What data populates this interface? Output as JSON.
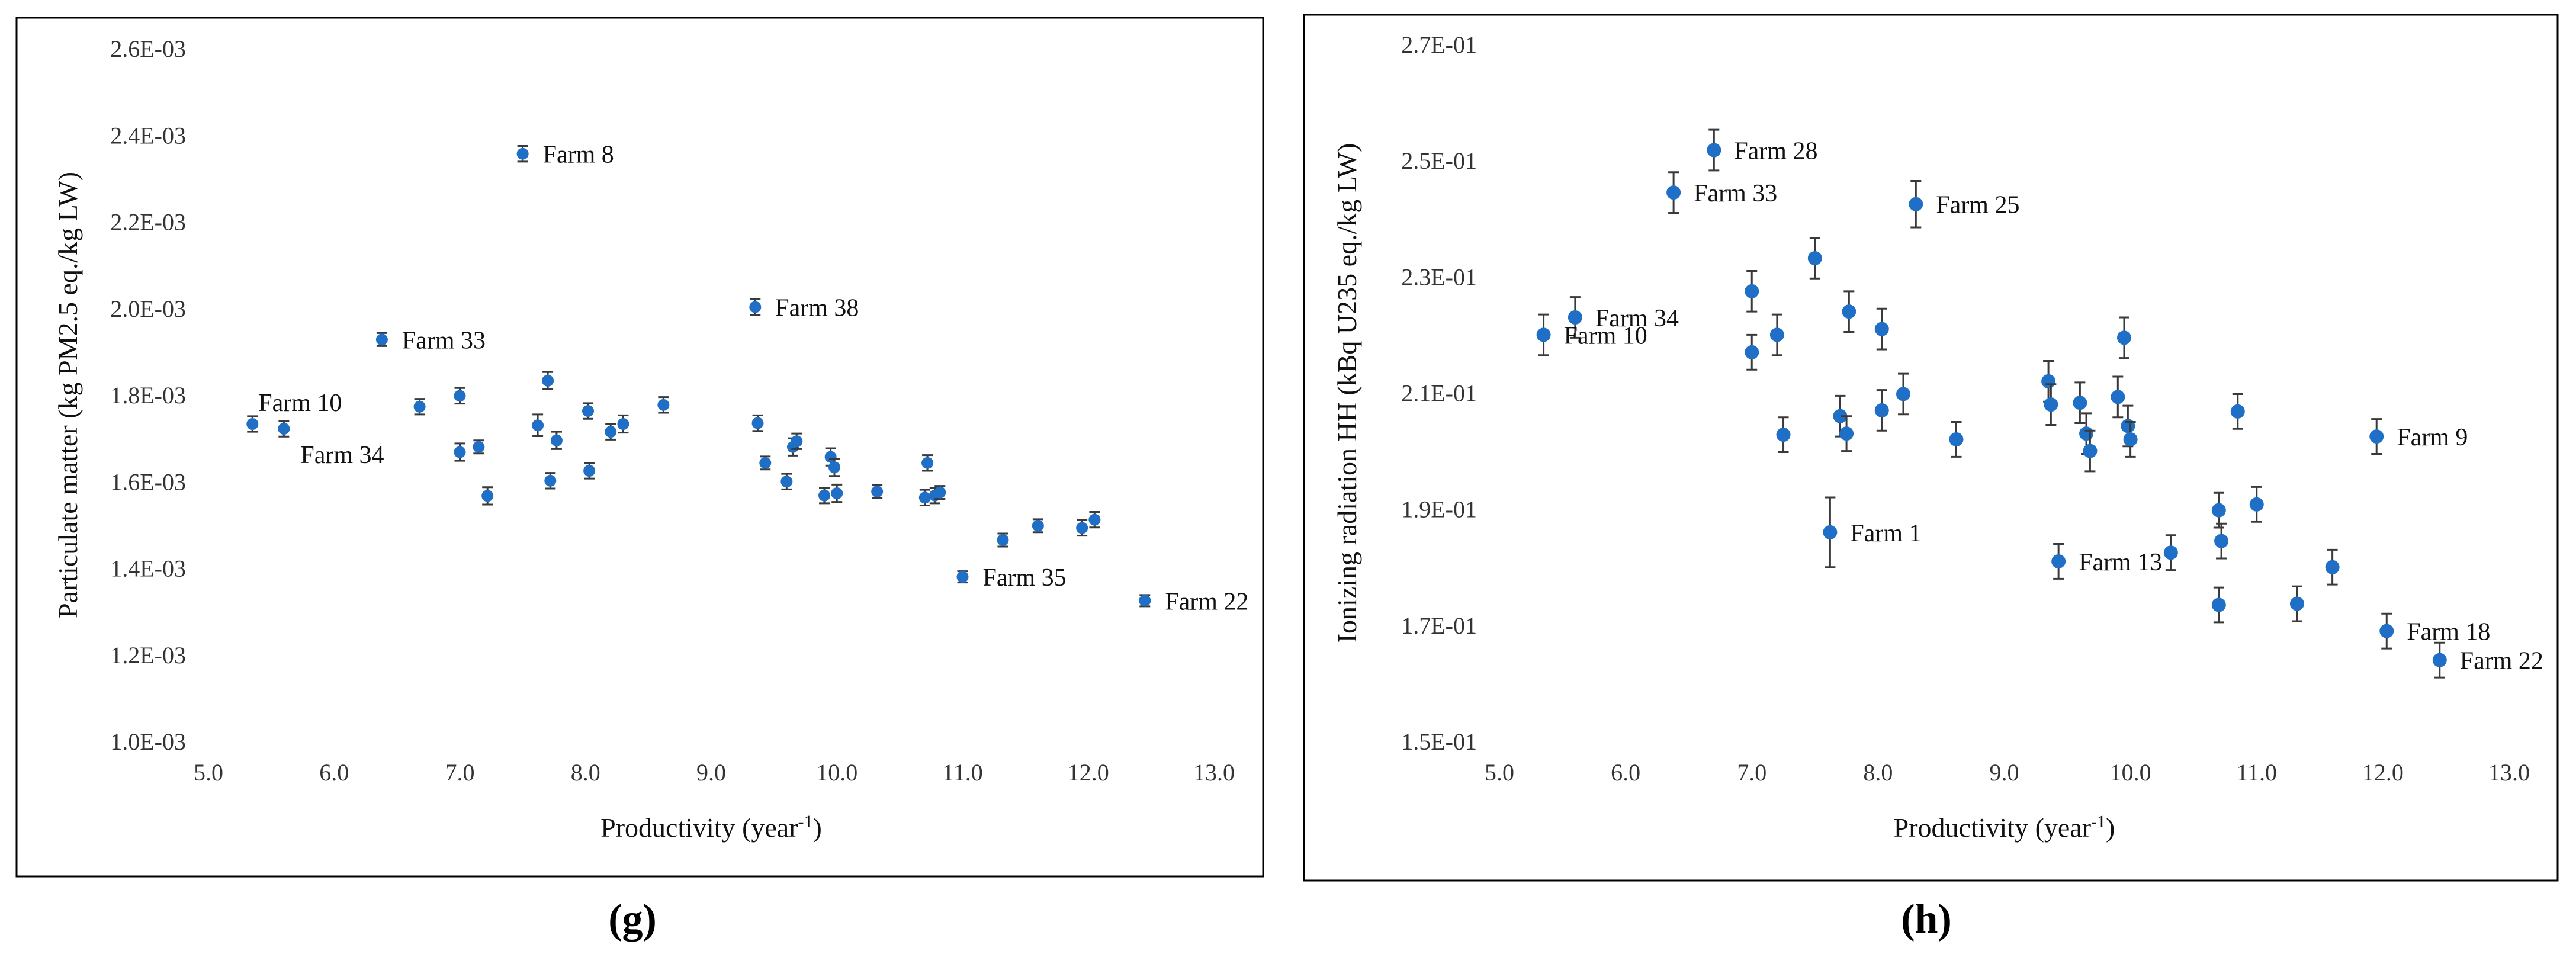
{
  "chart_data": [
    {
      "panel": "(g)",
      "type": "scatter",
      "xlabel": "Productivity (year",
      "xlabel_sup": "-1",
      "xlabel_end": ")",
      "ylabel": "Particulate matter (kg PM2.5 eq./kg LW)",
      "xlim": [
        5.0,
        13.0
      ],
      "ylim": [
        0.001,
        0.0026
      ],
      "x_ticks": [
        5,
        6,
        7,
        8,
        9,
        10,
        11,
        12,
        13
      ],
      "x_tick_labels": [
        "5.0",
        "6.0",
        "7.0",
        "8.0",
        "9.0",
        "10.0",
        "11.0",
        "12.0",
        "13.0"
      ],
      "y_ticks": [
        0.001,
        0.0012,
        0.0014,
        0.0016,
        0.0018,
        0.002,
        0.0022,
        0.0024,
        0.0026
      ],
      "y_tick_labels": [
        "1.0E-03",
        "1.2E-03",
        "1.4E-03",
        "1.6E-03",
        "1.8E-03",
        "2.0E-03",
        "2.2E-03",
        "2.4E-03",
        "2.6E-03"
      ],
      "points": [
        {
          "x": 5.35,
          "y": 0.001733,
          "e": 1.8e-05
        },
        {
          "x": 5.6,
          "y": 0.001722,
          "e": 1.8e-05
        },
        {
          "x": 6.38,
          "y": 0.001928,
          "e": 1.5e-05
        },
        {
          "x": 6.68,
          "y": 0.001773,
          "e": 1.8e-05
        },
        {
          "x": 7.0,
          "y": 0.001798,
          "e": 1.8e-05
        },
        {
          "x": 7.0,
          "y": 0.001668,
          "e": 2e-05
        },
        {
          "x": 7.15,
          "y": 0.00168,
          "e": 1.5e-05
        },
        {
          "x": 7.22,
          "y": 0.001567,
          "e": 2e-05
        },
        {
          "x": 7.5,
          "y": 0.002357,
          "e": 1.8e-05
        },
        {
          "x": 7.62,
          "y": 0.00173,
          "e": 2.5e-05
        },
        {
          "x": 7.7,
          "y": 0.001833,
          "e": 2e-05
        },
        {
          "x": 7.72,
          "y": 0.001602,
          "e": 1.8e-05
        },
        {
          "x": 7.77,
          "y": 0.001695,
          "e": 2e-05
        },
        {
          "x": 8.02,
          "y": 0.001763,
          "e": 1.8e-05
        },
        {
          "x": 8.03,
          "y": 0.001625,
          "e": 1.8e-05
        },
        {
          "x": 8.2,
          "y": 0.001715,
          "e": 1.8e-05
        },
        {
          "x": 8.3,
          "y": 0.001733,
          "e": 2e-05
        },
        {
          "x": 8.62,
          "y": 0.001777,
          "e": 1.8e-05
        },
        {
          "x": 9.35,
          "y": 0.002003,
          "e": 1.8e-05
        },
        {
          "x": 9.37,
          "y": 0.001735,
          "e": 1.8e-05
        },
        {
          "x": 9.43,
          "y": 0.001643,
          "e": 1.5e-05
        },
        {
          "x": 9.6,
          "y": 0.0016,
          "e": 1.8e-05
        },
        {
          "x": 9.65,
          "y": 0.00168,
          "e": 2e-05
        },
        {
          "x": 9.68,
          "y": 0.001693,
          "e": 1.8e-05
        },
        {
          "x": 9.9,
          "y": 0.001568,
          "e": 1.8e-05
        },
        {
          "x": 9.95,
          "y": 0.001657,
          "e": 2e-05
        },
        {
          "x": 9.98,
          "y": 0.001633,
          "e": 2e-05
        },
        {
          "x": 10.0,
          "y": 0.001573,
          "e": 2e-05
        },
        {
          "x": 10.32,
          "y": 0.001577,
          "e": 1.5e-05
        },
        {
          "x": 10.7,
          "y": 0.001563,
          "e": 1.8e-05
        },
        {
          "x": 10.72,
          "y": 0.001643,
          "e": 1.8e-05
        },
        {
          "x": 10.78,
          "y": 0.001568,
          "e": 1.8e-05
        },
        {
          "x": 10.82,
          "y": 0.001575,
          "e": 1.5e-05
        },
        {
          "x": 11.0,
          "y": 0.00138,
          "e": 1.3e-05
        },
        {
          "x": 11.32,
          "y": 0.001465,
          "e": 1.5e-05
        },
        {
          "x": 11.6,
          "y": 0.001498,
          "e": 1.5e-05
        },
        {
          "x": 11.95,
          "y": 0.001493,
          "e": 1.8e-05
        },
        {
          "x": 12.05,
          "y": 0.001512,
          "e": 1.8e-05
        },
        {
          "x": 12.45,
          "y": 0.001325,
          "e": 1.3e-05
        }
      ],
      "annotations": [
        {
          "text": "Farm 8",
          "x": 7.5,
          "y": 0.002357,
          "side": "right"
        },
        {
          "text": "Farm 38",
          "x": 9.35,
          "y": 0.002003,
          "side": "right"
        },
        {
          "text": "Farm 33",
          "x": 6.38,
          "y": 0.001928,
          "side": "right"
        },
        {
          "text": "Farm 10",
          "x": 5.35,
          "y": 0.001733,
          "side": "above"
        },
        {
          "text": "Farm 34",
          "x": 5.6,
          "y": 0.001722,
          "side": "below"
        },
        {
          "text": "Farm 35",
          "x": 11.0,
          "y": 0.00138,
          "side": "right"
        },
        {
          "text": "Farm 22",
          "x": 12.45,
          "y": 0.001325,
          "side": "right"
        }
      ]
    },
    {
      "panel": "(h)",
      "type": "scatter",
      "xlabel": "Productivity (year",
      "xlabel_sup": "-1",
      "xlabel_end": ")",
      "ylabel": "Ionizing radiation HH (kBq U235 eq./kg LW)",
      "xlim": [
        5.0,
        13.0
      ],
      "ylim": [
        0.15,
        0.27
      ],
      "x_ticks": [
        5,
        6,
        7,
        8,
        9,
        10,
        11,
        12,
        13
      ],
      "x_tick_labels": [
        "5.0",
        "6.0",
        "7.0",
        "8.0",
        "9.0",
        "10.0",
        "11.0",
        "12.0",
        "13.0"
      ],
      "y_ticks": [
        0.15,
        0.17,
        0.19,
        0.21,
        0.23,
        0.25,
        0.27
      ],
      "y_tick_labels": [
        "1.5E-01",
        "1.7E-01",
        "1.9E-01",
        "2.1E-01",
        "2.3E-01",
        "2.5E-01",
        "2.7E-01"
      ],
      "points": [
        {
          "x": 5.35,
          "y": 0.22,
          "e": 0.0035
        },
        {
          "x": 5.6,
          "y": 0.223,
          "e": 0.0035
        },
        {
          "x": 6.38,
          "y": 0.2445,
          "e": 0.0035
        },
        {
          "x": 6.7,
          "y": 0.2518,
          "e": 0.0035
        },
        {
          "x": 7.0,
          "y": 0.2275,
          "e": 0.0035
        },
        {
          "x": 7.0,
          "y": 0.217,
          "e": 0.003
        },
        {
          "x": 7.2,
          "y": 0.22,
          "e": 0.0035
        },
        {
          "x": 7.25,
          "y": 0.2028,
          "e": 0.003
        },
        {
          "x": 7.5,
          "y": 0.2332,
          "e": 0.0035
        },
        {
          "x": 7.62,
          "y": 0.186,
          "e": 0.006
        },
        {
          "x": 7.7,
          "y": 0.206,
          "e": 0.0035
        },
        {
          "x": 7.75,
          "y": 0.203,
          "e": 0.003
        },
        {
          "x": 7.77,
          "y": 0.224,
          "e": 0.0035
        },
        {
          "x": 8.03,
          "y": 0.221,
          "e": 0.0035
        },
        {
          "x": 8.03,
          "y": 0.207,
          "e": 0.0035
        },
        {
          "x": 8.2,
          "y": 0.2098,
          "e": 0.0035
        },
        {
          "x": 8.3,
          "y": 0.2425,
          "e": 0.004
        },
        {
          "x": 8.62,
          "y": 0.202,
          "e": 0.003
        },
        {
          "x": 9.35,
          "y": 0.212,
          "e": 0.0035
        },
        {
          "x": 9.37,
          "y": 0.208,
          "e": 0.0035
        },
        {
          "x": 9.43,
          "y": 0.181,
          "e": 0.003
        },
        {
          "x": 9.6,
          "y": 0.2083,
          "e": 0.0035
        },
        {
          "x": 9.65,
          "y": 0.203,
          "e": 0.0035
        },
        {
          "x": 9.68,
          "y": 0.2,
          "e": 0.0035
        },
        {
          "x": 9.9,
          "y": 0.2093,
          "e": 0.0035
        },
        {
          "x": 9.95,
          "y": 0.2195,
          "e": 0.0035
        },
        {
          "x": 9.98,
          "y": 0.2043,
          "e": 0.0035
        },
        {
          "x": 10.0,
          "y": 0.202,
          "e": 0.003
        },
        {
          "x": 10.32,
          "y": 0.1825,
          "e": 0.003
        },
        {
          "x": 10.7,
          "y": 0.1898,
          "e": 0.003
        },
        {
          "x": 10.72,
          "y": 0.1845,
          "e": 0.003
        },
        {
          "x": 10.7,
          "y": 0.1735,
          "e": 0.003
        },
        {
          "x": 10.85,
          "y": 0.2068,
          "e": 0.003
        },
        {
          "x": 11.0,
          "y": 0.1908,
          "e": 0.003
        },
        {
          "x": 11.32,
          "y": 0.1737,
          "e": 0.003
        },
        {
          "x": 11.6,
          "y": 0.18,
          "e": 0.003
        },
        {
          "x": 11.95,
          "y": 0.2025,
          "e": 0.003
        },
        {
          "x": 12.03,
          "y": 0.169,
          "e": 0.003
        },
        {
          "x": 12.45,
          "y": 0.164,
          "e": 0.003
        }
      ],
      "annotations": [
        {
          "text": "Farm 28",
          "x": 6.7,
          "y": 0.2518,
          "side": "right"
        },
        {
          "text": "Farm 33",
          "x": 6.38,
          "y": 0.2445,
          "side": "right"
        },
        {
          "text": "Farm 25",
          "x": 8.3,
          "y": 0.2425,
          "side": "right"
        },
        {
          "text": "Farm 34",
          "x": 5.6,
          "y": 0.223,
          "side": "right"
        },
        {
          "text": "Farm 10",
          "x": 5.35,
          "y": 0.22,
          "side": "right"
        },
        {
          "text": "Farm 9",
          "x": 11.95,
          "y": 0.2025,
          "side": "right"
        },
        {
          "text": "Farm 1",
          "x": 7.62,
          "y": 0.186,
          "side": "right"
        },
        {
          "text": "Farm 13",
          "x": 9.43,
          "y": 0.181,
          "side": "right"
        },
        {
          "text": "Farm 18",
          "x": 12.03,
          "y": 0.169,
          "side": "right"
        },
        {
          "text": "Farm 22",
          "x": 12.45,
          "y": 0.164,
          "side": "right"
        }
      ]
    }
  ]
}
